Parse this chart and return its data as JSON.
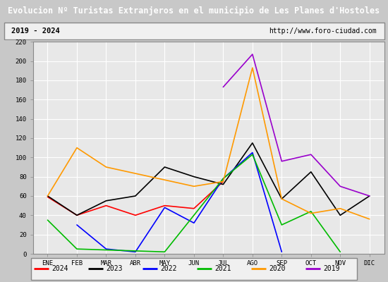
{
  "title": "Evolucion Nº Turistas Extranjeros en el municipio de Les Planes d'Hostoles",
  "subtitle_left": "2019 - 2024",
  "subtitle_right": "http://www.foro-ciudad.com",
  "months": [
    "ENE",
    "FEB",
    "MAR",
    "ABR",
    "MAY",
    "JUN",
    "JUL",
    "AGO",
    "SEP",
    "OCT",
    "NOV",
    "DIC"
  ],
  "series": {
    "2024": [
      59,
      40,
      50,
      40,
      50,
      47,
      75,
      null,
      null,
      null,
      null,
      null
    ],
    "2023": [
      60,
      40,
      55,
      60,
      90,
      80,
      72,
      115,
      57,
      85,
      40,
      60
    ],
    "2022": [
      null,
      30,
      5,
      2,
      48,
      32,
      78,
      105,
      2,
      null,
      null,
      null
    ],
    "2021": [
      35,
      5,
      null,
      null,
      2,
      null,
      78,
      103,
      30,
      44,
      2,
      null
    ],
    "2020": [
      60,
      110,
      90,
      null,
      null,
      70,
      75,
      193,
      57,
      42,
      47,
      36
    ],
    "2019": [
      null,
      null,
      null,
      null,
      null,
      null,
      173,
      207,
      96,
      103,
      70,
      60
    ]
  },
  "colors": {
    "2024": "#ff0000",
    "2023": "#000000",
    "2022": "#0000ff",
    "2021": "#00bb00",
    "2020": "#ff9900",
    "2019": "#9900cc"
  },
  "ylim": [
    0,
    220
  ],
  "yticks": [
    0,
    20,
    40,
    60,
    80,
    100,
    120,
    140,
    160,
    180,
    200,
    220
  ],
  "title_bg": "#4472c4",
  "title_color": "#ffffff",
  "plot_bg": "#e8e8e8",
  "grid_color": "#ffffff",
  "outer_bg": "#c8c8c8",
  "subtitle_bg": "#f0f0f0",
  "legend_bg": "#f0f0f0"
}
